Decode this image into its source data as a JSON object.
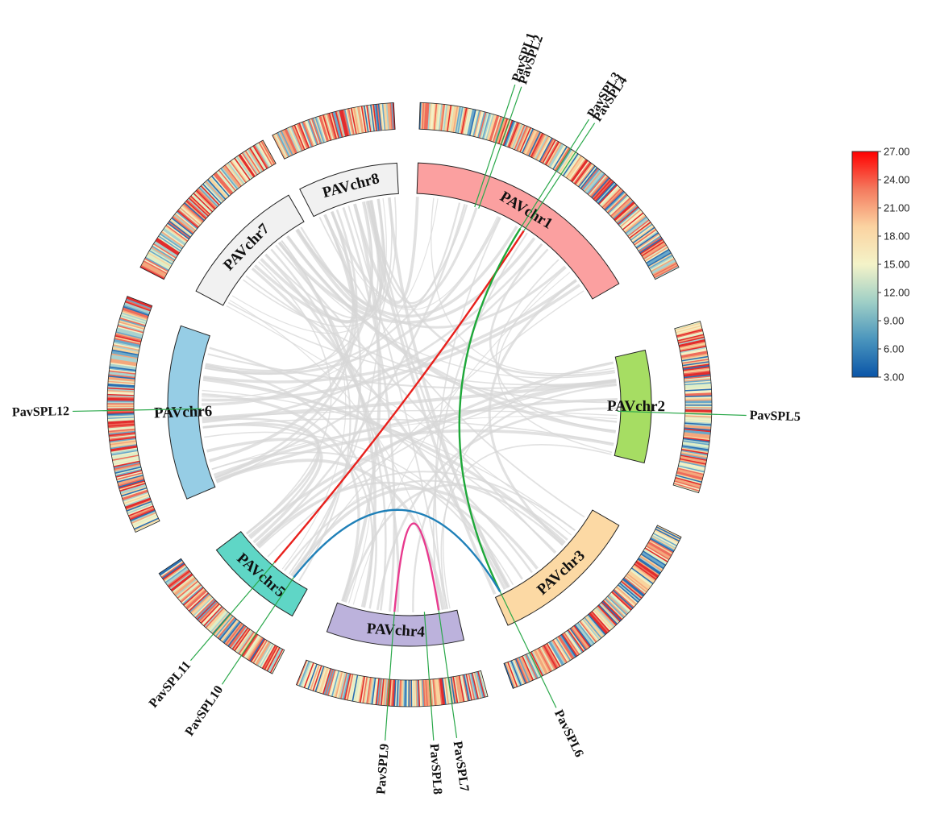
{
  "chromosomes": [
    {
      "name": "PAVchr1",
      "color": "#fba0a0"
    },
    {
      "name": "PAVchr2",
      "color": "#a6dd63"
    },
    {
      "name": "PAVchr3",
      "color": "#fcd9a4"
    },
    {
      "name": "PAVchr4",
      "color": "#bcb2dc"
    },
    {
      "name": "PAVchr5",
      "color": "#5fd6c6"
    },
    {
      "name": "PAVchr6",
      "color": "#96cde5"
    },
    {
      "name": "PAVchr7",
      "color": "#f1f1f1"
    },
    {
      "name": "PAVchr8",
      "color": "#f1f1f1"
    }
  ],
  "genes": [
    {
      "name": "PavSPL1",
      "chr": 0,
      "pos": 0.28
    },
    {
      "name": "PavSPL2",
      "chr": 0,
      "pos": 0.3
    },
    {
      "name": "PavSPL3",
      "chr": 0,
      "pos": 0.52
    },
    {
      "name": "PavSPL4",
      "chr": 0,
      "pos": 0.54
    },
    {
      "name": "PavSPL5",
      "chr": 1,
      "pos": 0.55
    },
    {
      "name": "PavSPL6",
      "chr": 2,
      "pos": 0.95
    },
    {
      "name": "PavSPL7",
      "chr": 3,
      "pos": 0.15
    },
    {
      "name": "PavSPL8",
      "chr": 3,
      "pos": 0.27
    },
    {
      "name": "PavSPL9",
      "chr": 3,
      "pos": 0.52
    },
    {
      "name": "PavSPL10",
      "chr": 4,
      "pos": 0.2
    },
    {
      "name": "PavSPL11",
      "chr": 4,
      "pos": 0.48
    },
    {
      "name": "PavSPL12",
      "chr": 5,
      "pos": 0.52
    }
  ],
  "highlight_links": [
    {
      "from": "PavSPL4",
      "to": "PavSPL11",
      "color": "#e8201c"
    },
    {
      "from": "PavSPL3",
      "to": "PavSPL6",
      "color": "#1fa83a"
    },
    {
      "from": "PavSPL10",
      "to": "PavSPL6",
      "color": "#1f80b8"
    },
    {
      "from": "PavSPL9",
      "to": "PavSPL7",
      "color": "#e83a8e"
    }
  ],
  "colorbar": {
    "min": 3.0,
    "max": 27.0,
    "ticks": [
      "27.00",
      "24.00",
      "21.00",
      "18.00",
      "15.00",
      "12.00",
      "9.00",
      "6.00",
      "3.00"
    ],
    "stops": [
      "#ff0000",
      "#f47a5e",
      "#fbd3a1",
      "#f4f3c8",
      "#9fcfc6",
      "#4a95bd",
      "#0a55a8"
    ]
  },
  "density_palette": [
    "#2b6fb2",
    "#6aa8c9",
    "#a9d2cf",
    "#dfeec7",
    "#f4f0c6",
    "#f8d49e",
    "#f4a77c",
    "#ee6c5a",
    "#e22c2c"
  ]
}
